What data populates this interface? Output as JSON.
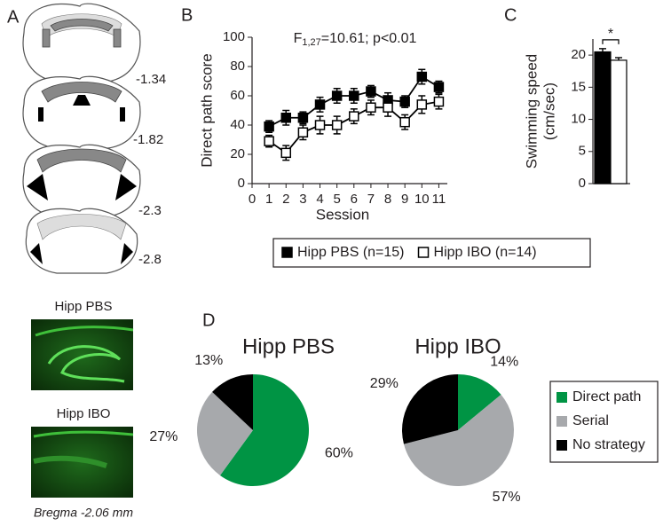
{
  "panels": {
    "a": "A",
    "b": "B",
    "c": "C",
    "d": "D"
  },
  "atlas": {
    "levels": [
      "-1.34",
      "-1.82",
      "-2.3",
      "-2.8"
    ],
    "images": [
      "Hipp PBS",
      "Hipp IBO"
    ],
    "caption": "Bregma -2.06 mm"
  },
  "chart_data": [
    {
      "type": "line",
      "annotation": {
        "text": "F",
        "sub": "1,27",
        "rest": "=10.61; p<0.01"
      },
      "xlabel": "Session",
      "ylabel": "Direct path score",
      "x": [
        1,
        2,
        3,
        4,
        5,
        6,
        7,
        8,
        9,
        10,
        11
      ],
      "xlim": [
        0,
        11.5
      ],
      "xticks": [
        0,
        1,
        2,
        3,
        4,
        5,
        6,
        7,
        8,
        9,
        10,
        11
      ],
      "ylim": [
        0,
        100
      ],
      "yticks": [
        0,
        20,
        40,
        60,
        80,
        100
      ],
      "legend": "bottom",
      "series": [
        {
          "name": "Hipp PBS (n=15)",
          "color": "#000000",
          "marker": "filled",
          "values": [
            39,
            45,
            45,
            54,
            60,
            60,
            63,
            57,
            56,
            73,
            66
          ],
          "errors": [
            4,
            5,
            4,
            5,
            5,
            5,
            4,
            5,
            4,
            5,
            4
          ]
        },
        {
          "name": "Hipp IBO (n=14)",
          "color": "#000000",
          "marker": "open",
          "values": [
            29,
            21,
            35,
            40,
            40,
            46,
            52,
            52,
            42,
            54,
            56
          ],
          "errors": [
            4,
            5,
            5,
            6,
            6,
            5,
            5,
            6,
            5,
            6,
            5
          ]
        }
      ]
    },
    {
      "type": "bar",
      "ylabel": [
        "Swimming speed",
        "(cm/sec)"
      ],
      "annotation": "*",
      "categories": [
        null,
        null
      ],
      "values": [
        20.5,
        19.2
      ],
      "errors": [
        0.5,
        0.4
      ],
      "colors": [
        "#000000",
        "#ffffff"
      ],
      "ylim": [
        0,
        22.5
      ],
      "yticks": [
        0,
        5,
        10,
        15,
        20
      ]
    },
    {
      "type": "pie",
      "title": "Hipp PBS",
      "categories": [
        "Direct path",
        "Serial",
        "No strategy"
      ],
      "values": [
        60,
        27,
        13
      ],
      "value_labels": [
        "60%",
        "27%",
        "13%"
      ],
      "colors": [
        "#009444",
        "#a7a9ac",
        "#000000"
      ],
      "legend": "right"
    },
    {
      "type": "pie",
      "title": "Hipp IBO",
      "categories": [
        "Direct path",
        "Serial",
        "No strategy"
      ],
      "values": [
        14,
        57,
        29
      ],
      "value_labels": [
        "14%",
        "57%",
        "29%"
      ],
      "colors": [
        "#009444",
        "#a7a9ac",
        "#000000"
      ]
    }
  ]
}
